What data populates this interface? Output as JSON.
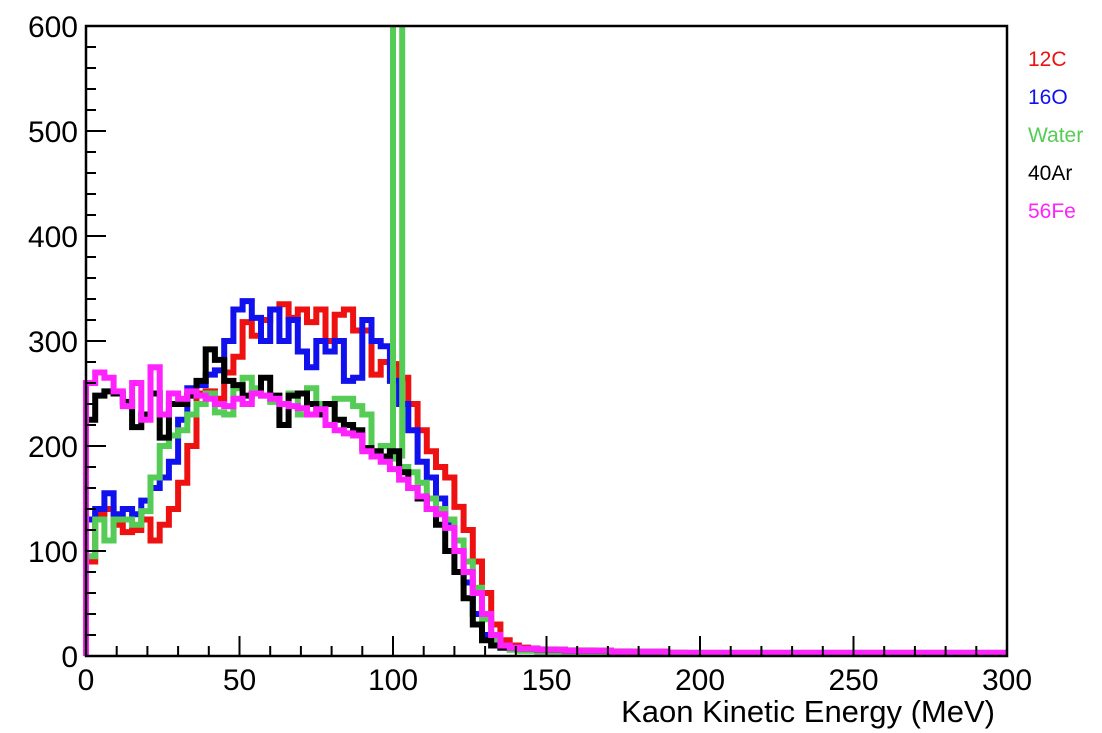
{
  "chart_data": {
    "type": "line",
    "style": "step-histogram",
    "title": "",
    "xlabel": "Kaon Kinetic Energy (MeV)",
    "ylabel": "",
    "xlim": [
      0,
      300
    ],
    "ylim": [
      0,
      600
    ],
    "xticks": [
      0,
      50,
      100,
      150,
      200,
      250,
      300
    ],
    "yticks": [
      0,
      100,
      200,
      300,
      400,
      500,
      600
    ],
    "xtick_labels": [
      "0",
      "50",
      "100",
      "150",
      "200",
      "250",
      "300"
    ],
    "ytick_labels": [
      "0",
      "100",
      "200",
      "300",
      "400",
      "500",
      "600"
    ],
    "bin_width": 3,
    "bin_start": 0,
    "grid": false,
    "legend_position": "right, outside plot",
    "series": [
      {
        "name": "12C",
        "color": "#ee1111",
        "values": [
          90,
          135,
          140,
          125,
          118,
          120,
          130,
          110,
          125,
          140,
          165,
          200,
          250,
          252,
          245,
          270,
          285,
          318,
          305,
          320,
          330,
          335,
          322,
          330,
          318,
          330,
          300,
          325,
          330,
          310,
          310,
          268,
          280,
          278,
          265,
          240,
          215,
          195,
          180,
          170,
          142,
          120,
          90,
          60,
          30,
          15,
          10,
          8,
          7,
          6,
          6,
          5,
          5,
          5,
          5,
          4,
          4,
          4,
          4,
          3,
          3,
          3,
          3,
          3,
          3,
          2,
          2,
          2,
          2,
          2,
          2,
          2,
          2,
          2,
          2,
          2,
          2,
          2,
          2,
          2,
          2,
          2,
          2,
          2,
          2,
          2,
          2,
          2,
          2,
          2,
          2,
          2,
          2,
          2,
          2,
          2,
          2,
          2,
          2,
          2
        ]
      },
      {
        "name": "16O",
        "color": "#1111ee",
        "values": [
          130,
          140,
          155,
          135,
          140,
          135,
          148,
          160,
          170,
          185,
          225,
          255,
          258,
          268,
          272,
          300,
          330,
          338,
          322,
          300,
          330,
          300,
          320,
          290,
          275,
          300,
          290,
          300,
          262,
          265,
          320,
          300,
          295,
          262,
          240,
          215,
          185,
          170,
          150,
          125,
          100,
          70,
          40,
          20,
          10,
          8,
          7,
          6,
          6,
          5,
          5,
          5,
          5,
          4,
          4,
          4,
          4,
          3,
          3,
          3,
          3,
          3,
          3,
          2,
          2,
          2,
          2,
          2,
          2,
          2,
          2,
          2,
          2,
          2,
          2,
          2,
          2,
          2,
          2,
          2,
          2,
          2,
          2,
          2,
          2,
          2,
          2,
          2,
          2,
          2,
          2,
          2,
          2,
          2,
          2,
          2,
          2,
          2,
          2,
          2
        ]
      },
      {
        "name": "Water",
        "color": "#55cc55",
        "values": [
          95,
          130,
          110,
          130,
          130,
          125,
          138,
          170,
          200,
          210,
          215,
          230,
          240,
          250,
          232,
          230,
          255,
          265,
          255,
          248,
          242,
          240,
          250,
          230,
          255,
          240,
          240,
          245,
          245,
          238,
          230,
          192,
          200,
          188,
          180,
          175,
          165,
          150,
          140,
          130,
          110,
          90,
          65,
          35,
          15,
          8,
          6,
          5,
          5,
          4,
          4,
          4,
          3,
          3,
          3,
          3,
          3,
          3,
          2,
          2,
          2,
          2,
          2,
          2,
          2,
          2,
          2,
          2,
          2,
          2,
          2,
          2,
          2,
          2,
          2,
          2,
          2,
          2,
          2,
          2,
          2,
          2,
          2,
          2,
          2,
          2,
          2,
          2,
          2,
          2,
          2,
          2,
          2,
          2,
          2,
          2,
          2,
          2,
          2,
          2
        ],
        "spike": {
          "x_start": 100,
          "x_end": 103,
          "value": 600
        }
      },
      {
        "name": "40Ar",
        "color": "#000000",
        "values": [
          225,
          248,
          252,
          250,
          242,
          218,
          230,
          250,
          208,
          240,
          240,
          248,
          262,
          292,
          282,
          262,
          258,
          248,
          250,
          265,
          248,
          220,
          248,
          250,
          240,
          230,
          240,
          225,
          220,
          215,
          198,
          195,
          190,
          195,
          175,
          160,
          150,
          140,
          125,
          100,
          80,
          55,
          30,
          15,
          10,
          8,
          8,
          7,
          7,
          6,
          6,
          6,
          5,
          5,
          5,
          5,
          5,
          4,
          4,
          4,
          4,
          4,
          4,
          3,
          3,
          3,
          3,
          3,
          3,
          3,
          3,
          3,
          3,
          3,
          3,
          3,
          3,
          3,
          3,
          3,
          3,
          3,
          3,
          3,
          3,
          3,
          3,
          3,
          3,
          3,
          3,
          3,
          3,
          3,
          3,
          3,
          3,
          3,
          3,
          3
        ]
      },
      {
        "name": "56Fe",
        "color": "#ff22ff",
        "values": [
          260,
          270,
          265,
          252,
          238,
          260,
          225,
          275,
          230,
          250,
          245,
          252,
          248,
          245,
          240,
          238,
          245,
          240,
          250,
          248,
          245,
          240,
          238,
          236,
          230,
          235,
          220,
          215,
          212,
          210,
          195,
          190,
          185,
          178,
          168,
          160,
          152,
          140,
          135,
          122,
          100,
          80,
          60,
          40,
          20,
          10,
          8,
          7,
          7,
          6,
          6,
          6,
          5,
          5,
          5,
          5,
          5,
          4,
          4,
          4,
          4,
          4,
          4,
          3,
          3,
          3,
          3,
          3,
          3,
          3,
          3,
          3,
          3,
          3,
          3,
          3,
          3,
          3,
          3,
          3,
          3,
          3,
          3,
          3,
          3,
          3,
          3,
          3,
          3,
          3,
          3,
          3,
          3,
          3,
          3,
          3,
          3,
          3,
          3,
          3
        ]
      }
    ]
  }
}
